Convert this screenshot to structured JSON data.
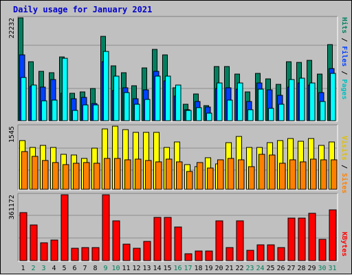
{
  "title": "Daily usage for January 2021",
  "colors": {
    "background": "#c0c0c0",
    "panel": "#c0c0c0",
    "title": "#0000cc",
    "hits": "#008060",
    "files": "#0040ff",
    "pages": "#00ffff",
    "visits": "#ffff00",
    "sites": "#ff8000",
    "kbytes": "#ff0000",
    "weekday_label": "#000000",
    "weekend_label": "#00805c"
  },
  "legends": {
    "top": [
      {
        "text": "Hits",
        "color": "#008060"
      },
      {
        "text": " / ",
        "color": "#000000"
      },
      {
        "text": "Files",
        "color": "#0040ff"
      },
      {
        "text": " / ",
        "color": "#000000"
      },
      {
        "text": "Pages",
        "color": "#00c0c0"
      }
    ],
    "middle": [
      {
        "text": "Visits",
        "color": "#e0c000"
      },
      {
        "text": " / ",
        "color": "#000000"
      },
      {
        "text": "Sites",
        "color": "#ff8000"
      }
    ],
    "bottom": [
      {
        "text": "KBytes",
        "color": "#ff0000"
      }
    ]
  },
  "chart_data": [
    {
      "type": "bar",
      "panel": "hits-files-pages",
      "categories": [
        "1",
        "2",
        "3",
        "4",
        "5",
        "6",
        "7",
        "8",
        "9",
        "10",
        "11",
        "12",
        "13",
        "14",
        "15",
        "16",
        "17",
        "18",
        "19",
        "20",
        "21",
        "22",
        "23",
        "24",
        "25",
        "26",
        "27",
        "28",
        "29",
        "30",
        "31"
      ],
      "ymax_label": "22232",
      "ylim": [
        0,
        22232
      ],
      "series": [
        {
          "name": "Hits",
          "values": [
            22232,
            12800,
            10600,
            10400,
            13800,
            5900,
            6200,
            6900,
            18200,
            11800,
            10400,
            7500,
            11400,
            15400,
            14200,
            7100,
            3600,
            5800,
            3200,
            11700,
            11700,
            10100,
            6200,
            10300,
            9100,
            7800,
            12800,
            12600,
            13000,
            10100,
            16400
          ]
        },
        {
          "name": "Files",
          "values": [
            14300,
            7400,
            7200,
            8900,
            6000,
            4700,
            5100,
            3700,
            12800,
            6500,
            7100,
            4800,
            6600,
            10700,
            8600,
            5400,
            2400,
            4200,
            3000,
            6900,
            7100,
            6800,
            4200,
            8100,
            6600,
            5500,
            7300,
            8100,
            7700,
            6100,
            11300
          ]
        },
        {
          "name": "Pages",
          "values": [
            9300,
            7700,
            4300,
            4500,
            13500,
            2200,
            3400,
            3400,
            15000,
            9600,
            6100,
            3500,
            4600,
            9600,
            9600,
            7700,
            2200,
            2800,
            1700,
            8200,
            4500,
            8200,
            2300,
            6800,
            2600,
            3600,
            8900,
            9200,
            8200,
            4200,
            10300
          ]
        }
      ]
    },
    {
      "type": "bar",
      "panel": "visits-sites",
      "categories": [
        "1",
        "2",
        "3",
        "4",
        "5",
        "6",
        "7",
        "8",
        "9",
        "10",
        "11",
        "12",
        "13",
        "14",
        "15",
        "16",
        "17",
        "18",
        "19",
        "20",
        "21",
        "22",
        "23",
        "24",
        "25",
        "26",
        "27",
        "28",
        "29",
        "30",
        "31"
      ],
      "ymax_label": "1545",
      "ylim": [
        0,
        1545
      ],
      "series": [
        {
          "name": "Visits",
          "values": [
            1200,
            1020,
            1080,
            1020,
            850,
            840,
            760,
            1000,
            1480,
            1545,
            1460,
            1400,
            1390,
            1390,
            1020,
            1160,
            600,
            550,
            780,
            620,
            1150,
            1290,
            1020,
            1020,
            1140,
            1200,
            1250,
            1170,
            1250,
            1080,
            1160
          ]
        },
        {
          "name": "Sites",
          "values": [
            920,
            800,
            700,
            660,
            610,
            640,
            660,
            640,
            760,
            760,
            720,
            740,
            700,
            680,
            740,
            680,
            430,
            660,
            520,
            720,
            760,
            720,
            560,
            860,
            840,
            640,
            720,
            680,
            740,
            720,
            720
          ]
        }
      ]
    },
    {
      "type": "bar",
      "panel": "kbytes",
      "categories": [
        "1",
        "2",
        "3",
        "4",
        "5",
        "6",
        "7",
        "8",
        "9",
        "10",
        "11",
        "12",
        "13",
        "14",
        "15",
        "16",
        "17",
        "18",
        "19",
        "20",
        "21",
        "22",
        "23",
        "24",
        "25",
        "26",
        "27",
        "28",
        "29",
        "30",
        "31"
      ],
      "ymax_label": "361172",
      "ylim": [
        0,
        361172
      ],
      "series": [
        {
          "name": "KBytes",
          "values": [
            264000,
            196000,
            96000,
            114000,
            361172,
            68000,
            73000,
            71000,
            361172,
            220000,
            92000,
            66000,
            107000,
            238000,
            238000,
            185000,
            37000,
            53000,
            53000,
            218000,
            70000,
            220000,
            55000,
            85000,
            87000,
            72000,
            233000,
            233000,
            260000,
            115000,
            277000
          ]
        }
      ]
    }
  ]
}
